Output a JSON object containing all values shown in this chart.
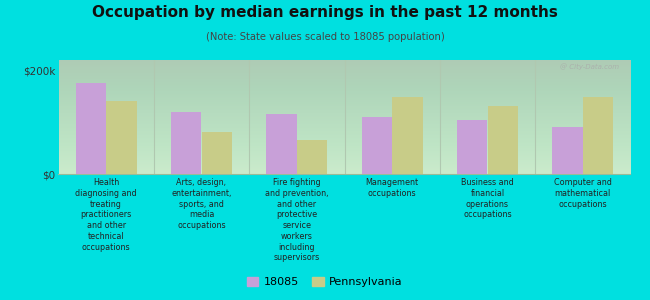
{
  "title": "Occupation by median earnings in the past 12 months",
  "subtitle": "(Note: State values scaled to 18085 population)",
  "background_color": "#00e0e0",
  "plot_bg_top": "#d8f0d8",
  "plot_bg_bottom": "#f0fff0",
  "categories": [
    "Health\ndiagnosing and\ntreating\npractitioners\nand other\ntechnical\noccupations",
    "Arts, design,\nentertainment,\nsports, and\nmedia\noccupations",
    "Fire fighting\nand prevention,\nand other\nprotective\nservice\nworkers\nincluding\nsupervisors",
    "Management\noccupations",
    "Business and\nfinancial\noperations\noccupations",
    "Computer and\nmathematical\noccupations"
  ],
  "values_18085": [
    175000,
    120000,
    115000,
    110000,
    105000,
    90000
  ],
  "values_pa": [
    140000,
    82000,
    65000,
    148000,
    132000,
    148000
  ],
  "color_18085": "#c8a0d8",
  "color_pa": "#c8cc88",
  "ylim": [
    0,
    220000
  ],
  "yticks": [
    0,
    200000
  ],
  "ytick_labels": [
    "$0",
    "$200k"
  ],
  "legend_18085": "18085",
  "legend_pa": "Pennsylvania",
  "bar_width": 0.32,
  "divider_color": "#b0c8b0",
  "watermark": "@ City-Data.com"
}
